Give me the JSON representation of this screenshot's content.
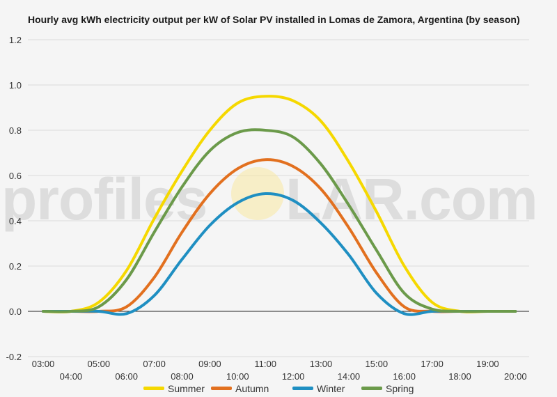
{
  "watermark": {
    "left": "profiles",
    "right": "LAR.com"
  },
  "chart_data": {
    "type": "line",
    "title": "Hourly avg kWh electricity output per kW of Solar PV installed in Lomas de Zamora, Argentina (by season)",
    "xlabel": "",
    "ylabel": "",
    "x": [
      "03:00",
      "04:00",
      "05:00",
      "06:00",
      "07:00",
      "08:00",
      "09:00",
      "10:00",
      "11:00",
      "12:00",
      "13:00",
      "14:00",
      "15:00",
      "16:00",
      "17:00",
      "18:00",
      "19:00",
      "20:00"
    ],
    "y_ticks": [
      "-0.2",
      "0.0",
      "0.2",
      "0.4",
      "0.6",
      "0.8",
      "1.0",
      "1.2"
    ],
    "ylim": [
      -0.2,
      1.2
    ],
    "grid": true,
    "legend_position": "bottom",
    "series": [
      {
        "name": "Summer",
        "color": "#f5d800",
        "values": [
          0,
          0,
          0.04,
          0.18,
          0.41,
          0.62,
          0.8,
          0.92,
          0.95,
          0.93,
          0.84,
          0.66,
          0.44,
          0.2,
          0.04,
          0,
          0,
          0
        ]
      },
      {
        "name": "Autumn",
        "color": "#e2701f",
        "values": [
          0,
          0,
          0,
          0.02,
          0.15,
          0.35,
          0.52,
          0.63,
          0.67,
          0.64,
          0.54,
          0.37,
          0.17,
          0.02,
          0,
          0,
          0,
          0
        ]
      },
      {
        "name": "Winter",
        "color": "#1f8fc2",
        "values": [
          0,
          0,
          0,
          -0.01,
          0.07,
          0.23,
          0.38,
          0.48,
          0.52,
          0.49,
          0.39,
          0.25,
          0.08,
          -0.01,
          0,
          0,
          0,
          0
        ]
      },
      {
        "name": "Spring",
        "color": "#6b9a4a",
        "values": [
          0,
          0,
          0.02,
          0.14,
          0.35,
          0.55,
          0.71,
          0.79,
          0.8,
          0.77,
          0.65,
          0.47,
          0.27,
          0.08,
          0.01,
          0,
          0,
          0
        ]
      }
    ]
  }
}
